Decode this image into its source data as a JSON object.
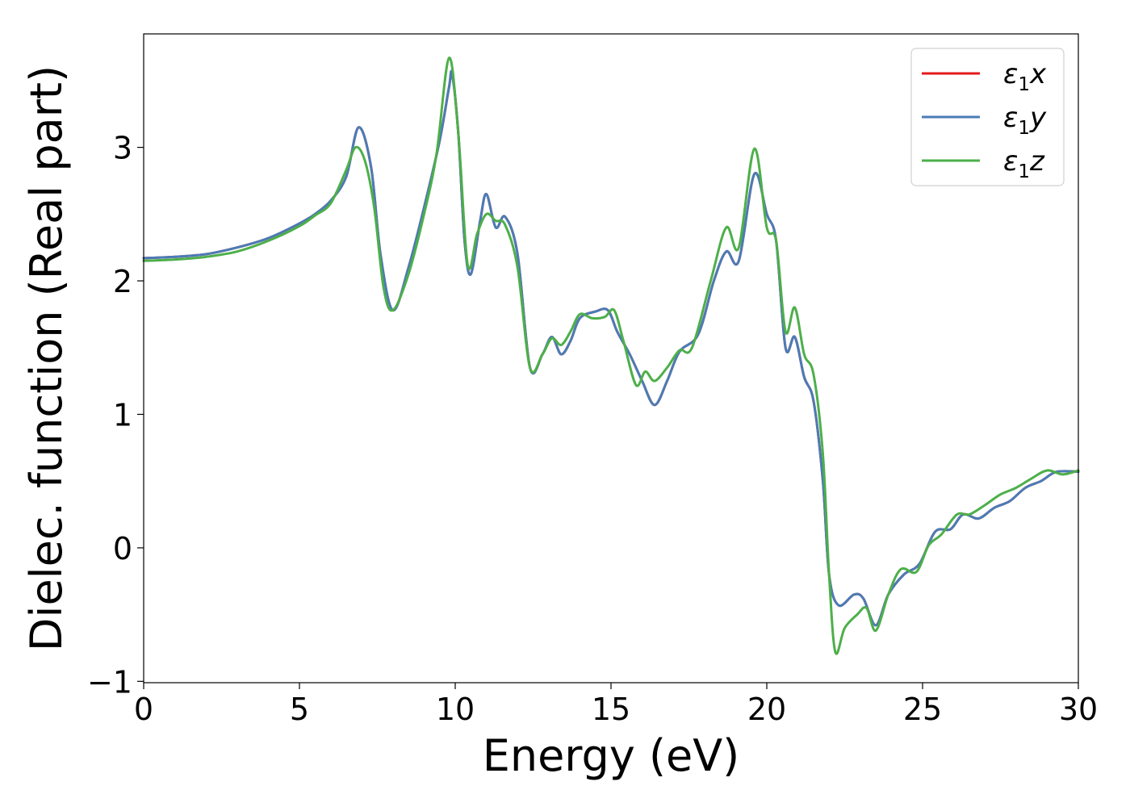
{
  "chart_data": {
    "type": "line",
    "xlabel": "Energy (eV)",
    "ylabel": "Dielec. function (Real part)",
    "xlim": [
      0,
      30
    ],
    "ylim": [
      -1.01,
      3.85
    ],
    "xticks": [
      0,
      5,
      10,
      15,
      20,
      25,
      30
    ],
    "yticks": [
      -1,
      0,
      1,
      2,
      3
    ],
    "grid": false,
    "legend_position": "top-right",
    "series": [
      {
        "name": "ε₁x",
        "legend": {
          "base": "ε",
          "sub": "1",
          "suffix": "x"
        },
        "color": "#e41a1c",
        "x": [
          0,
          1,
          2,
          3,
          4,
          5,
          5.5,
          6,
          6.5,
          6.9,
          7.3,
          7.6,
          8.0,
          8.5,
          9.0,
          9.5,
          9.8,
          9.9,
          10.1,
          10.3,
          10.5,
          10.8,
          11.0,
          11.3,
          11.6,
          12.0,
          12.4,
          12.8,
          13.1,
          13.4,
          13.7,
          14.0,
          14.5,
          14.9,
          15.2,
          15.6,
          16.0,
          16.4,
          16.8,
          17.2,
          17.8,
          18.3,
          18.7,
          19.1,
          19.6,
          20.0,
          20.3,
          20.6,
          20.9,
          21.2,
          21.5,
          21.8,
          22.0,
          22.3,
          22.8,
          23.1,
          23.5,
          23.9,
          24.4,
          24.9,
          25.4,
          25.9,
          26.3,
          26.8,
          27.3,
          27.8,
          28.3,
          28.8,
          29.3,
          30
        ],
        "y": [
          2.17,
          2.18,
          2.2,
          2.25,
          2.32,
          2.43,
          2.5,
          2.6,
          2.78,
          3.15,
          2.85,
          2.2,
          1.78,
          2.1,
          2.55,
          3.05,
          3.45,
          3.55,
          3.1,
          2.3,
          2.05,
          2.45,
          2.65,
          2.4,
          2.48,
          2.2,
          1.35,
          1.45,
          1.58,
          1.45,
          1.55,
          1.72,
          1.77,
          1.78,
          1.62,
          1.45,
          1.25,
          1.07,
          1.25,
          1.47,
          1.6,
          2.0,
          2.22,
          2.15,
          2.8,
          2.5,
          2.3,
          1.5,
          1.58,
          1.28,
          1.1,
          0.5,
          -0.2,
          -0.43,
          -0.35,
          -0.38,
          -0.58,
          -0.35,
          -0.2,
          -0.12,
          0.12,
          0.14,
          0.25,
          0.22,
          0.3,
          0.35,
          0.45,
          0.5,
          0.57,
          0.57
        ]
      },
      {
        "name": "ε₁y",
        "legend": {
          "base": "ε",
          "sub": "1",
          "suffix": "y"
        },
        "color": "#4a7cb6",
        "x": [
          0,
          1,
          2,
          3,
          4,
          5,
          5.5,
          6,
          6.5,
          6.9,
          7.3,
          7.6,
          8.0,
          8.5,
          9.0,
          9.5,
          9.8,
          9.9,
          10.1,
          10.3,
          10.5,
          10.8,
          11.0,
          11.3,
          11.6,
          12.0,
          12.4,
          12.8,
          13.1,
          13.4,
          13.7,
          14.0,
          14.5,
          14.9,
          15.2,
          15.6,
          16.0,
          16.4,
          16.8,
          17.2,
          17.8,
          18.3,
          18.7,
          19.1,
          19.6,
          20.0,
          20.3,
          20.6,
          20.9,
          21.2,
          21.5,
          21.8,
          22.0,
          22.3,
          22.8,
          23.1,
          23.5,
          23.9,
          24.4,
          24.9,
          25.4,
          25.9,
          26.3,
          26.8,
          27.3,
          27.8,
          28.3,
          28.8,
          29.3,
          30
        ],
        "y": [
          2.17,
          2.18,
          2.2,
          2.25,
          2.32,
          2.43,
          2.5,
          2.6,
          2.78,
          3.15,
          2.85,
          2.2,
          1.78,
          2.1,
          2.55,
          3.05,
          3.45,
          3.55,
          3.1,
          2.3,
          2.05,
          2.45,
          2.65,
          2.4,
          2.48,
          2.2,
          1.35,
          1.45,
          1.58,
          1.45,
          1.55,
          1.72,
          1.77,
          1.78,
          1.62,
          1.45,
          1.25,
          1.07,
          1.25,
          1.47,
          1.6,
          2.0,
          2.22,
          2.15,
          2.8,
          2.5,
          2.3,
          1.5,
          1.58,
          1.28,
          1.1,
          0.5,
          -0.2,
          -0.43,
          -0.35,
          -0.38,
          -0.58,
          -0.35,
          -0.2,
          -0.12,
          0.12,
          0.14,
          0.25,
          0.22,
          0.3,
          0.35,
          0.45,
          0.5,
          0.57,
          0.57
        ]
      },
      {
        "name": "ε₁z",
        "legend": {
          "base": "ε",
          "sub": "1",
          "suffix": "z"
        },
        "color": "#4daf4a",
        "x": [
          0,
          1,
          2,
          3,
          4,
          5,
          5.5,
          6,
          6.5,
          6.8,
          7.1,
          7.4,
          7.7,
          8.0,
          8.5,
          9.0,
          9.4,
          9.8,
          10.1,
          10.4,
          10.7,
          11.0,
          11.3,
          11.6,
          12.0,
          12.4,
          12.8,
          13.1,
          13.4,
          13.7,
          14.0,
          14.4,
          14.8,
          15.1,
          15.4,
          15.8,
          16.1,
          16.4,
          16.8,
          17.2,
          17.6,
          18.2,
          18.7,
          19.1,
          19.6,
          20.0,
          20.3,
          20.6,
          20.9,
          21.2,
          21.5,
          21.8,
          22.0,
          22.2,
          22.5,
          22.9,
          23.2,
          23.5,
          23.9,
          24.3,
          24.8,
          25.2,
          25.6,
          26.1,
          26.5,
          27.0,
          27.5,
          28.0,
          28.5,
          29.0,
          29.5,
          30
        ],
        "y": [
          2.15,
          2.16,
          2.18,
          2.22,
          2.3,
          2.41,
          2.49,
          2.58,
          2.83,
          3.0,
          2.9,
          2.55,
          1.95,
          1.78,
          2.05,
          2.5,
          2.95,
          3.67,
          3.1,
          2.12,
          2.35,
          2.5,
          2.45,
          2.42,
          2.1,
          1.35,
          1.45,
          1.57,
          1.52,
          1.62,
          1.75,
          1.72,
          1.73,
          1.78,
          1.55,
          1.22,
          1.32,
          1.25,
          1.35,
          1.48,
          1.5,
          2.0,
          2.4,
          2.25,
          2.99,
          2.4,
          2.3,
          1.62,
          1.8,
          1.45,
          1.3,
          0.7,
          -0.2,
          -0.78,
          -0.6,
          -0.5,
          -0.45,
          -0.62,
          -0.35,
          -0.16,
          -0.18,
          0.02,
          0.1,
          0.25,
          0.25,
          0.32,
          0.4,
          0.45,
          0.52,
          0.58,
          0.55,
          0.58
        ]
      }
    ]
  }
}
